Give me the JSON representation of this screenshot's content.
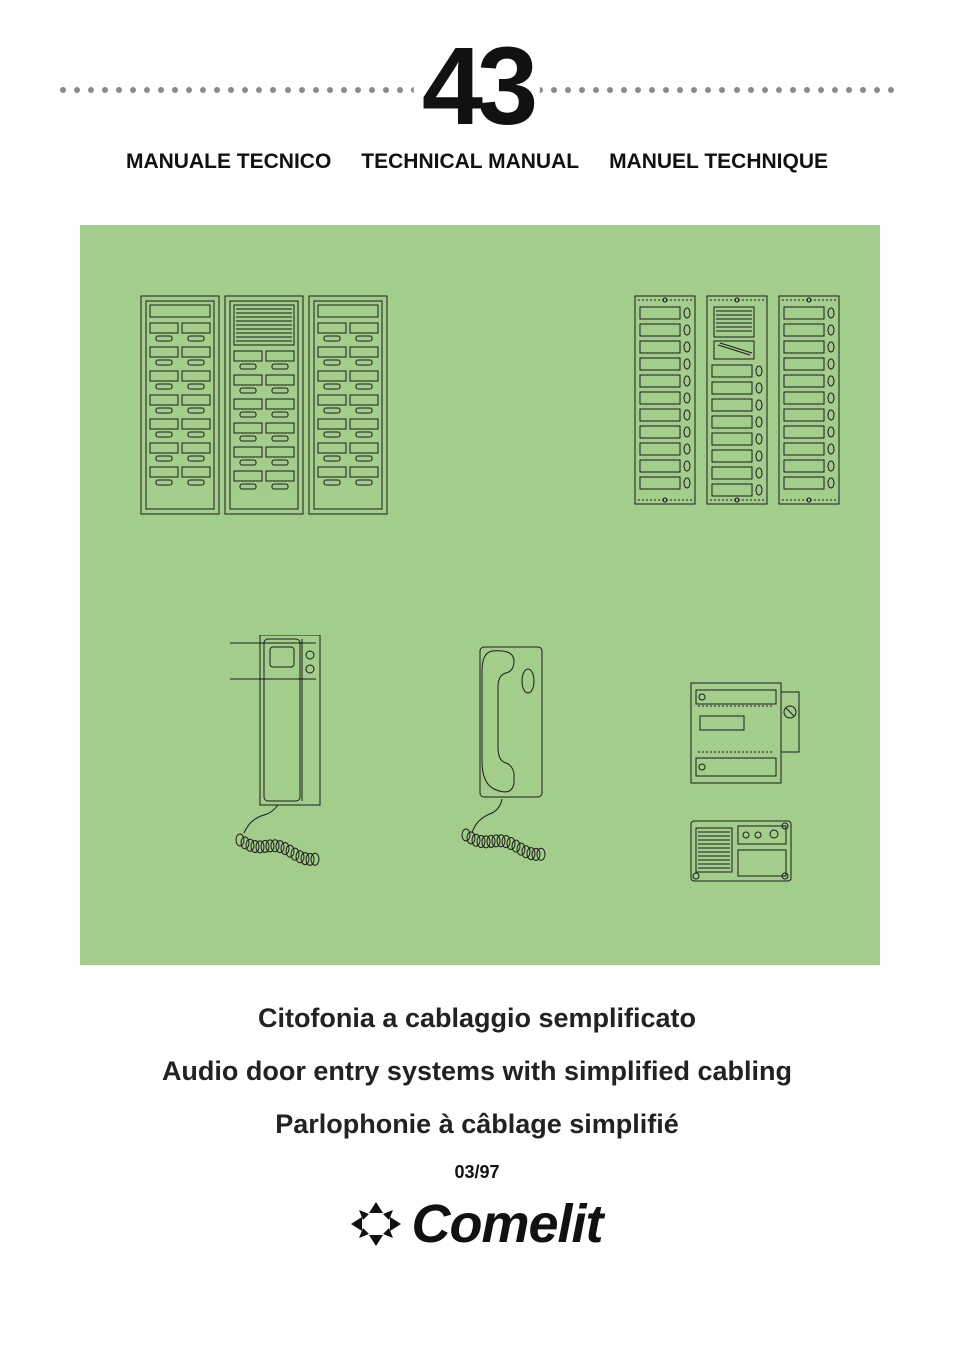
{
  "header": {
    "number": "43",
    "titles": {
      "it": "MANUALE TECNICO",
      "en": "TECHNICAL MANUAL",
      "fr": "MANUEL TECHNIQUE"
    },
    "dot_color": "#8a8a8a",
    "dot_count": 60
  },
  "green_box": {
    "background": "#a3cd8a",
    "stroke_dark": "#3a6b3a",
    "stroke": "#1a1a1a"
  },
  "descriptions": {
    "it": "Citofonia a cablaggio semplificato",
    "en": "Audio door entry systems with simplified cabling",
    "fr": "Parlophonie à câblage simplifié"
  },
  "date": "03/97",
  "brand": "Comelit",
  "colors": {
    "page_bg": "#ffffff",
    "text": "#111111",
    "desc_text": "#222222"
  },
  "typography": {
    "number_fontsize": 110,
    "title_fontsize": 21,
    "desc_fontsize": 27,
    "date_fontsize": 18,
    "logo_fontsize": 54
  }
}
